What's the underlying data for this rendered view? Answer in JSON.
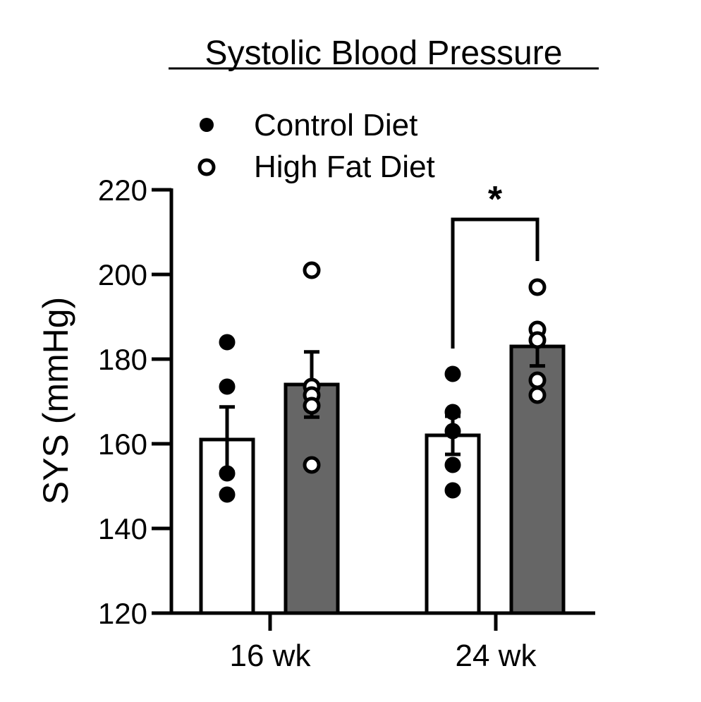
{
  "chart_data": {
    "type": "bar",
    "title": "Systolic Blood Pressure",
    "xlabel": "",
    "ylabel": "SYS (mmHg)",
    "ylim": [
      120,
      220
    ],
    "yticks": [
      120,
      140,
      160,
      180,
      200,
      220
    ],
    "categories": [
      "16 wk",
      "24 wk"
    ],
    "series": [
      {
        "name": "Control Diet",
        "marker": "filled-circle",
        "bar_color": "#ffffff",
        "values": [
          161,
          162
        ],
        "sem": [
          7.7,
          4.5
        ],
        "points": [
          [
            184,
            173.5,
            153,
            148
          ],
          [
            176.5,
            167.5,
            163,
            155,
            149
          ]
        ]
      },
      {
        "name": "High Fat Diet",
        "marker": "open-circle",
        "bar_color": "#666666",
        "values": [
          174,
          183
        ],
        "sem": [
          7.7,
          4.6
        ],
        "points": [
          [
            201,
            173.5,
            171.5,
            169,
            155
          ],
          [
            197,
            187,
            184.5,
            175,
            171.5
          ]
        ]
      }
    ],
    "annotations": [
      {
        "type": "significance",
        "text": "*",
        "category": "24 wk",
        "between": [
          "Control Diet",
          "High Fat Diet"
        ]
      }
    ],
    "legend": {
      "position": "top",
      "entries": [
        "Control Diet",
        "High Fat Diet"
      ]
    },
    "grid": false
  }
}
